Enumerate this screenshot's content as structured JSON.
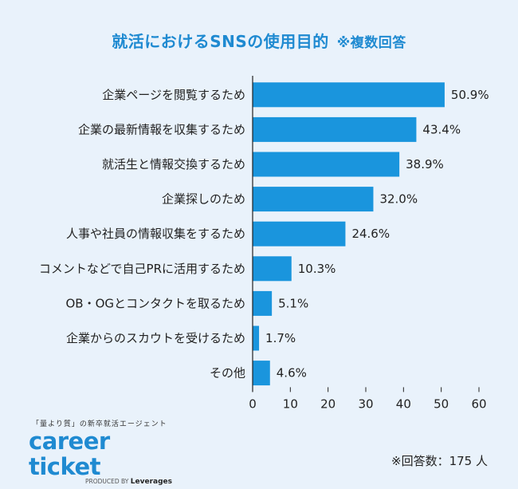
{
  "title": "就活におけるSNSの使用目的",
  "title_note": "※複数回答",
  "chart_data": {
    "type": "bar",
    "orientation": "horizontal",
    "title": "就活におけるSNSの使用目的 ※複数回答",
    "categories": [
      "企業ページを閲覧するため",
      "企業の最新情報を収集するため",
      "就活生と情報交換するため",
      "企業探しのため",
      "人事や社員の情報収集をするため",
      "コメントなどで自己PRに活用するため",
      "OB・OGとコンタクトを取るため",
      "企業からのスカウトを受けるため",
      "その他"
    ],
    "values": [
      50.9,
      43.4,
      38.9,
      32.0,
      24.6,
      10.3,
      5.1,
      1.7,
      4.6
    ],
    "value_labels": [
      "50.9%",
      "43.4%",
      "38.9%",
      "32.0%",
      "24.6%",
      "10.3%",
      "5.1%",
      "1.7%",
      "4.6%"
    ],
    "xlim": [
      0,
      60
    ],
    "xticks": [
      "0",
      "10",
      "20",
      "30",
      "40",
      "50",
      "60"
    ],
    "xlabel": "",
    "ylabel": "",
    "grid": false,
    "legend": "none",
    "bar_color": "#1a95dd"
  },
  "logo": {
    "tagline": "「量より質」の新卒就活エージェント",
    "name": "career ticket",
    "produced_by": "PRODUCED BY",
    "company": "Leverages"
  },
  "respondents": "※回答数：175 人",
  "colors": {
    "background": "#e9f2fb",
    "accent": "#1f8ad1",
    "bar": "#1a95dd"
  }
}
